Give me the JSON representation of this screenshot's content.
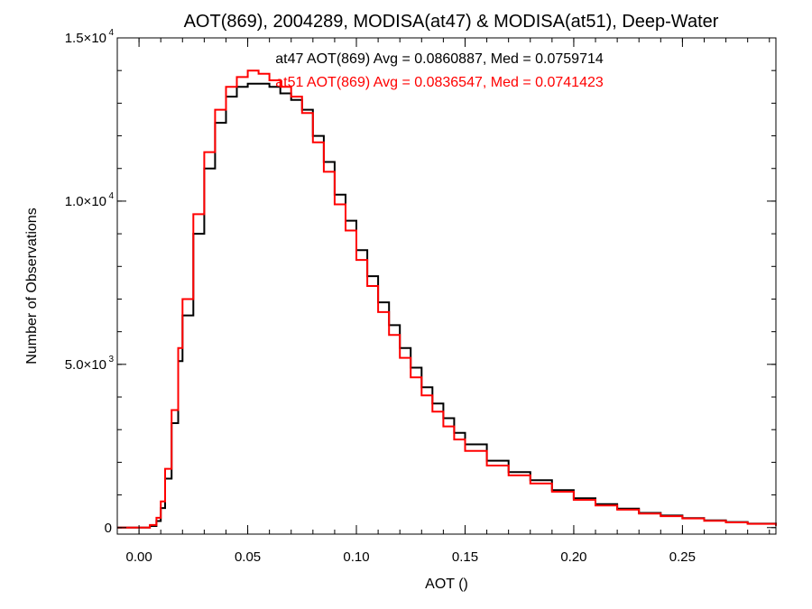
{
  "chart_data": {
    "type": "line",
    "step": true,
    "title": "AOT(869), 2004289, MODISA(at47) & MODISA(at51), Deep-Water",
    "xlabel": "AOT ()",
    "ylabel": "Number of Observations",
    "xlim": [
      -0.01,
      0.293
    ],
    "ylim": [
      -200,
      15000
    ],
    "grid": false,
    "x_ticks": [
      {
        "value": 0.0,
        "label": "0.00"
      },
      {
        "value": 0.05,
        "label": "0.05"
      },
      {
        "value": 0.1,
        "label": "0.10"
      },
      {
        "value": 0.15,
        "label": "0.15"
      },
      {
        "value": 0.2,
        "label": "0.20"
      },
      {
        "value": 0.25,
        "label": "0.25"
      }
    ],
    "y_ticks": [
      {
        "value": 0,
        "mantissa": "0",
        "exp": ""
      },
      {
        "value": 5000,
        "mantissa": "5.0×10",
        "exp": "3"
      },
      {
        "value": 10000,
        "mantissa": "1.0×10",
        "exp": "4"
      },
      {
        "value": 15000,
        "mantissa": "1.5×10",
        "exp": "4"
      }
    ],
    "stats": [
      {
        "text": "at47 AOT(869) Avg = 0.0860887, Med = 0.0759714",
        "color": "#000000"
      },
      {
        "text": "at51 AOT(869) Avg = 0.0836547, Med = 0.0741423",
        "color": "#ff0000"
      }
    ],
    "series": [
      {
        "color": "#000000",
        "x": [
          -0.01,
          0.0,
          0.005,
          0.008,
          0.01,
          0.012,
          0.015,
          0.018,
          0.02,
          0.025,
          0.03,
          0.035,
          0.04,
          0.045,
          0.05,
          0.055,
          0.06,
          0.065,
          0.07,
          0.075,
          0.08,
          0.085,
          0.09,
          0.095,
          0.1,
          0.105,
          0.11,
          0.115,
          0.12,
          0.125,
          0.13,
          0.135,
          0.14,
          0.145,
          0.15,
          0.16,
          0.17,
          0.18,
          0.19,
          0.2,
          0.21,
          0.22,
          0.23,
          0.24,
          0.25,
          0.26,
          0.27,
          0.28,
          0.293
        ],
        "values": [
          0,
          0,
          50,
          200,
          600,
          1500,
          3200,
          5100,
          6500,
          9000,
          11000,
          12400,
          13200,
          13500,
          13600,
          13600,
          13500,
          13300,
          13100,
          12800,
          12000,
          11200,
          10200,
          9400,
          8500,
          7700,
          6900,
          6200,
          5500,
          4900,
          4300,
          3800,
          3350,
          2900,
          2550,
          2050,
          1700,
          1450,
          1150,
          900,
          720,
          580,
          450,
          370,
          290,
          220,
          170,
          120,
          60
        ]
      },
      {
        "color": "#ff0000",
        "x": [
          -0.01,
          0.0,
          0.005,
          0.008,
          0.01,
          0.012,
          0.015,
          0.018,
          0.02,
          0.025,
          0.03,
          0.035,
          0.04,
          0.045,
          0.05,
          0.055,
          0.06,
          0.065,
          0.07,
          0.075,
          0.08,
          0.085,
          0.09,
          0.095,
          0.1,
          0.105,
          0.11,
          0.115,
          0.12,
          0.125,
          0.13,
          0.135,
          0.14,
          0.145,
          0.15,
          0.16,
          0.17,
          0.18,
          0.19,
          0.2,
          0.21,
          0.22,
          0.23,
          0.24,
          0.25,
          0.26,
          0.27,
          0.28,
          0.293
        ],
        "values": [
          0,
          0,
          80,
          300,
          800,
          1800,
          3600,
          5500,
          7000,
          9600,
          11500,
          12800,
          13500,
          13800,
          14000,
          13900,
          13700,
          13500,
          13200,
          12700,
          11800,
          10900,
          9900,
          9100,
          8200,
          7400,
          6600,
          5900,
          5200,
          4600,
          4050,
          3550,
          3100,
          2700,
          2350,
          1900,
          1600,
          1350,
          1100,
          850,
          680,
          550,
          430,
          350,
          280,
          210,
          160,
          115,
          55
        ]
      }
    ]
  }
}
